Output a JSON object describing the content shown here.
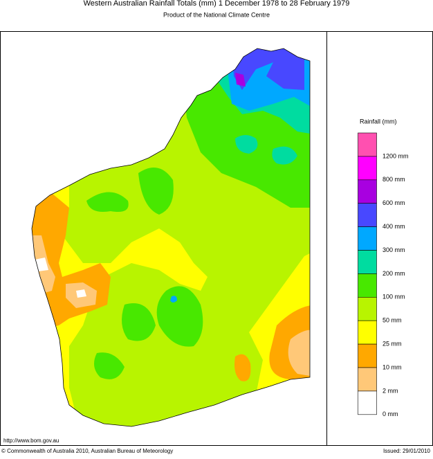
{
  "header": {
    "title": "Western Australian Rainfall Totals (mm) 1 December 1978 to 28 February 1979",
    "subtitle": "Product of the National Climate Centre"
  },
  "legend": {
    "title": "Rainfall (mm)",
    "items": [
      {
        "label": "1200 mm",
        "color": "#ff50b0"
      },
      {
        "label": "800 mm",
        "color": "#ff00ff"
      },
      {
        "label": "600 mm",
        "color": "#a800e0"
      },
      {
        "label": "400 mm",
        "color": "#4848ff"
      },
      {
        "label": "300 mm",
        "color": "#00a8ff"
      },
      {
        "label": "200 mm",
        "color": "#00dca0"
      },
      {
        "label": "100 mm",
        "color": "#48e800"
      },
      {
        "label": "50 mm",
        "color": "#b8f400"
      },
      {
        "label": "25 mm",
        "color": "#ffff00"
      },
      {
        "label": "10 mm",
        "color": "#ffa800"
      },
      {
        "label": "2 mm",
        "color": "#ffc878"
      },
      {
        "label": "0 mm",
        "color": "#ffffff"
      }
    ]
  },
  "footer": {
    "url": "http://www.bom.gov.au",
    "copyright": "© Commonwealth of Australia 2010, Australian Bureau of Meteorology",
    "issued": "Issued: 29/01/2010"
  }
}
